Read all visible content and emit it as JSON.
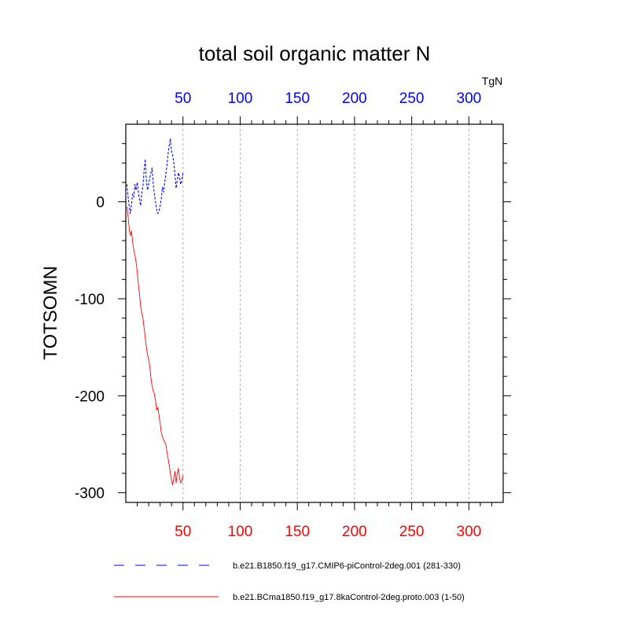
{
  "chart_data": {
    "type": "line",
    "title": "total soil organic matter N",
    "units_label": "TgN",
    "ylabel": "TOTSOMN",
    "xlim": [
      0,
      330
    ],
    "ylim": [
      -310,
      80
    ],
    "grid_x": true,
    "x_ticks_top": [
      50,
      100,
      150,
      200,
      250,
      300
    ],
    "x_ticks_bottom": [
      50,
      100,
      150,
      200,
      250,
      300
    ],
    "y_ticks": [
      0,
      -100,
      -200,
      -300
    ],
    "top_axis_color": "#0000ff",
    "bottom_axis_color": "#ff0000",
    "series": [
      {
        "name": "b.e21.B1850.f19_g17.CMIP6-piControl-2deg.001 (281-330)",
        "color": "#0000ff",
        "dash": "dashed",
        "axis": "top",
        "x": [
          1,
          2,
          3,
          4,
          5,
          6,
          7,
          8,
          9,
          10,
          11,
          12,
          13,
          14,
          15,
          16,
          17,
          18,
          19,
          20,
          21,
          22,
          23,
          24,
          25,
          26,
          27,
          28,
          29,
          30,
          31,
          32,
          33,
          34,
          35,
          36,
          37,
          38,
          39,
          40,
          41,
          42,
          43,
          44,
          45,
          46,
          47,
          48,
          49,
          50
        ],
        "y": [
          18,
          5,
          -5,
          -12,
          -2,
          8,
          5,
          18,
          12,
          20,
          10,
          2,
          -4,
          10,
          16,
          32,
          44,
          22,
          12,
          18,
          25,
          30,
          35,
          18,
          8,
          0,
          -8,
          -12,
          -10,
          -4,
          2,
          15,
          10,
          20,
          28,
          38,
          50,
          58,
          65,
          52,
          48,
          40,
          28,
          14,
          22,
          30,
          25,
          18,
          22,
          30
        ]
      },
      {
        "name": "b.e21.BCma1850.f19_g17.8kaControl-2deg.proto.003 (1-50)",
        "color": "#ff0000",
        "dash": "solid",
        "axis": "bottom",
        "x": [
          1,
          2,
          3,
          4,
          5,
          6,
          7,
          8,
          9,
          10,
          11,
          12,
          13,
          14,
          15,
          16,
          17,
          18,
          19,
          20,
          21,
          22,
          23,
          24,
          25,
          26,
          27,
          28,
          29,
          30,
          31,
          32,
          33,
          34,
          35,
          36,
          37,
          38,
          39,
          40,
          41,
          42,
          43,
          44,
          45,
          46,
          47,
          48,
          49,
          50
        ],
        "y": [
          -5,
          -15,
          -28,
          -35,
          -30,
          -42,
          -50,
          -55,
          -62,
          -72,
          -85,
          -95,
          -108,
          -115,
          -120,
          -130,
          -140,
          -150,
          -158,
          -162,
          -170,
          -182,
          -190,
          -195,
          -198,
          -205,
          -215,
          -212,
          -220,
          -228,
          -238,
          -242,
          -245,
          -248,
          -250,
          -258,
          -265,
          -272,
          -280,
          -288,
          -292,
          -285,
          -278,
          -290,
          -280,
          -275,
          -285,
          -290,
          -288,
          -282
        ]
      }
    ]
  }
}
